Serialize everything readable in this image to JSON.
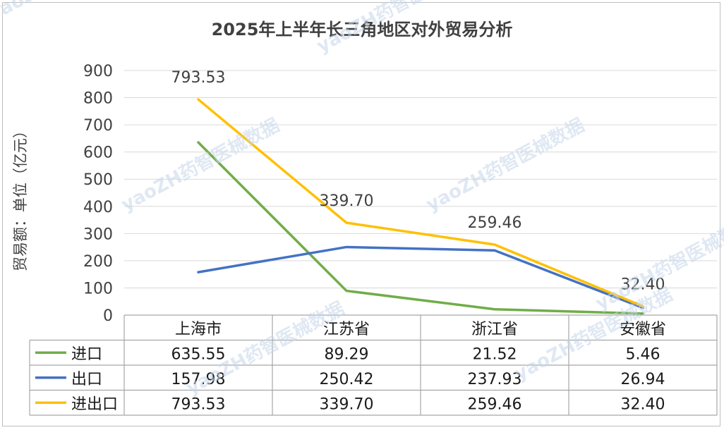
{
  "chart_data": {
    "type": "line",
    "title": "2025年上半年长三角地区对外贸易分析",
    "ylabel": "贸易额：单位（亿元）",
    "xlabel": "",
    "ylim": [
      0,
      900
    ],
    "yticks": [
      "0",
      "100",
      "200",
      "300",
      "400",
      "500",
      "600",
      "700",
      "800",
      "900"
    ],
    "categories": [
      "上海市",
      "江苏省",
      "浙江省",
      "安徽省"
    ],
    "series": [
      {
        "name": "进口",
        "color": "#70ad47",
        "values": [
          635.55,
          89.29,
          21.52,
          5.46
        ],
        "labels": [
          "635.55",
          "89.29",
          "21.52",
          "5.46"
        ]
      },
      {
        "name": "出口",
        "color": "#4472c4",
        "values": [
          157.98,
          250.42,
          237.93,
          26.94
        ],
        "labels": [
          "157.98",
          "250.42",
          "237.93",
          "26.94"
        ]
      },
      {
        "name": "进出口",
        "color": "#ffc000",
        "values": [
          793.53,
          339.7,
          259.46,
          32.4
        ],
        "labels": [
          "793.53",
          "339.70",
          "259.46",
          "32.40"
        ]
      }
    ],
    "data_labels": {
      "series": "进出口",
      "values": [
        "793.53",
        "339.70",
        "259.46",
        "32.40"
      ]
    },
    "grid": true,
    "legend": "data-table"
  },
  "watermark": {
    "text": "yaoZH药智医械数据"
  }
}
